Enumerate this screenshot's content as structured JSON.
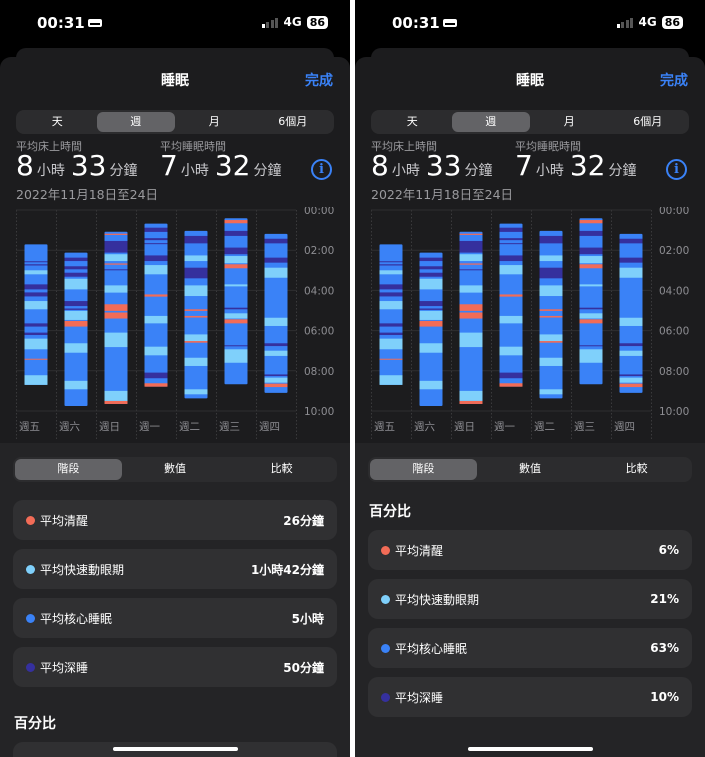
{
  "status": {
    "time": "00:31",
    "network": "4G",
    "battery": "86"
  },
  "header": {
    "title": "睡眠",
    "done_label": "完成"
  },
  "range_tabs": [
    {
      "label": "天"
    },
    {
      "label": "週",
      "selected": true
    },
    {
      "label": "月"
    },
    {
      "label": "6個月"
    }
  ],
  "summary": {
    "in_bed_label": "平均床上時間",
    "in_bed_hours": "8",
    "in_bed_minutes": "33",
    "asleep_label": "平均睡眠時間",
    "asleep_hours": "7",
    "asleep_minutes": "32",
    "hour_unit": "小時",
    "minute_unit": "分鐘",
    "date_range": "2022年11月18日至24日"
  },
  "colors": {
    "awake": "#f26c57",
    "rem": "#7fd0fb",
    "core": "#3a82f7",
    "deep": "#35309e",
    "accent": "#3a82f7"
  },
  "chart_data": {
    "type": "sleep-stages-range",
    "categories": [
      "週五",
      "週六",
      "週日",
      "週一",
      "週二",
      "週三",
      "週四"
    ],
    "y_ticks": [
      "00:00",
      "02:00",
      "04:00",
      "06:00",
      "08:00",
      "10:00"
    ],
    "ylim_hours": [
      0,
      10
    ],
    "bars": [
      {
        "start": 1.71,
        "end": 8.7,
        "segments": [
          [
            "deep",
            2.55,
            2.6
          ],
          [
            "deep",
            2.7,
            2.76
          ],
          [
            "rem",
            3.0,
            3.2
          ],
          [
            "deep",
            3.7,
            3.95
          ],
          [
            "deep",
            4.1,
            4.3
          ],
          [
            "rem",
            4.53,
            4.94
          ],
          [
            "deep",
            5.64,
            5.8
          ],
          [
            "deep",
            6.1,
            6.22
          ],
          [
            "rem",
            6.4,
            6.93
          ],
          [
            "awake",
            7.4,
            7.44
          ],
          [
            "rem",
            8.22,
            8.7
          ]
        ]
      },
      {
        "start": 2.12,
        "end": 9.75,
        "segments": [
          [
            "deep",
            2.37,
            2.54
          ],
          [
            "deep",
            2.8,
            2.95
          ],
          [
            "deep",
            3.12,
            3.32
          ],
          [
            "rem",
            3.42,
            3.95
          ],
          [
            "deep",
            4.53,
            4.78
          ],
          [
            "deep",
            4.9,
            4.97
          ],
          [
            "rem",
            5.02,
            5.47
          ],
          [
            "awake",
            5.52,
            5.8
          ],
          [
            "rem",
            6.63,
            7.1
          ],
          [
            "rem",
            8.5,
            8.92
          ]
        ]
      },
      {
        "start": 1.08,
        "end": 9.65,
        "segments": [
          [
            "awake",
            1.18,
            1.24
          ],
          [
            "deep",
            1.54,
            2.12
          ],
          [
            "rem",
            2.2,
            2.54
          ],
          [
            "awake",
            2.66,
            2.72
          ],
          [
            "deep",
            2.95,
            3.0
          ],
          [
            "rem",
            3.75,
            4.11
          ],
          [
            "awake",
            4.69,
            5.02
          ],
          [
            "awake",
            5.1,
            5.4
          ],
          [
            "rem",
            6.1,
            6.82
          ],
          [
            "rem",
            9.0,
            9.5
          ],
          [
            "awake",
            9.5,
            9.65
          ]
        ]
      },
      {
        "start": 0.68,
        "end": 8.79,
        "segments": [
          [
            "deep",
            0.88,
            1.09
          ],
          [
            "deep",
            1.4,
            1.5
          ],
          [
            "deep",
            1.65,
            1.7
          ],
          [
            "deep",
            2.26,
            2.54
          ],
          [
            "rem",
            2.74,
            3.2
          ],
          [
            "awake",
            4.2,
            4.31
          ],
          [
            "rem",
            5.27,
            5.64
          ],
          [
            "rem",
            6.8,
            7.23
          ],
          [
            "deep",
            8.09,
            8.37
          ],
          [
            "awake",
            8.62,
            8.79
          ]
        ]
      },
      {
        "start": 1.04,
        "end": 9.37,
        "segments": [
          [
            "deep",
            1.29,
            1.66
          ],
          [
            "rem",
            2.26,
            2.54
          ],
          [
            "deep",
            2.87,
            3.4
          ],
          [
            "rem",
            3.75,
            4.28
          ],
          [
            "awake",
            4.94,
            5.02
          ],
          [
            "awake",
            5.27,
            5.35
          ],
          [
            "rem",
            6.19,
            6.52
          ],
          [
            "awake",
            6.52,
            6.6
          ],
          [
            "rem",
            7.35,
            7.76
          ],
          [
            "rem",
            8.92,
            9.17
          ]
        ]
      },
      {
        "start": 0.41,
        "end": 8.67,
        "segments": [
          [
            "awake",
            0.5,
            0.66
          ],
          [
            "deep",
            1.04,
            1.29
          ],
          [
            "deep",
            1.87,
            2.2
          ],
          [
            "rem",
            2.29,
            2.65
          ],
          [
            "awake",
            2.7,
            2.9
          ],
          [
            "rem",
            3.7,
            3.8
          ],
          [
            "deep",
            4.86,
            4.94
          ],
          [
            "rem",
            5.14,
            5.4
          ],
          [
            "awake",
            5.44,
            5.64
          ],
          [
            "deep",
            6.73,
            6.78
          ],
          [
            "rem",
            6.93,
            7.6
          ]
        ]
      },
      {
        "start": 1.19,
        "end": 9.1,
        "segments": [
          [
            "deep",
            1.43,
            1.66
          ],
          [
            "deep",
            2.37,
            2.62
          ],
          [
            "rem",
            2.87,
            3.37
          ],
          [
            "rem",
            5.36,
            5.77
          ],
          [
            "deep",
            6.63,
            6.77
          ],
          [
            "rem",
            7.0,
            7.26
          ],
          [
            "deep",
            8.18,
            8.26
          ],
          [
            "rem",
            8.34,
            8.59
          ],
          [
            "awake",
            8.64,
            8.81
          ]
        ]
      }
    ]
  },
  "view_tabs": [
    {
      "label": "階段",
      "selected": true
    },
    {
      "label": "數值"
    },
    {
      "label": "比較"
    }
  ],
  "left_screen": {
    "stages": [
      {
        "stage": "awake",
        "label": "平均清醒",
        "value": "26分鐘"
      },
      {
        "stage": "rem",
        "label": "平均快速動眼期",
        "value": "1小時42分鐘"
      },
      {
        "stage": "core",
        "label": "平均核心睡眠",
        "value": "5小時"
      },
      {
        "stage": "deep",
        "label": "平均深睡",
        "value": "50分鐘"
      }
    ],
    "percent_heading": "百分比"
  },
  "right_screen": {
    "percent_heading": "百分比",
    "stages": [
      {
        "stage": "awake",
        "label": "平均清醒",
        "value": "6%"
      },
      {
        "stage": "rem",
        "label": "平均快速動眼期",
        "value": "21%"
      },
      {
        "stage": "core",
        "label": "平均核心睡眠",
        "value": "63%"
      },
      {
        "stage": "deep",
        "label": "平均深睡",
        "value": "10%"
      }
    ]
  }
}
